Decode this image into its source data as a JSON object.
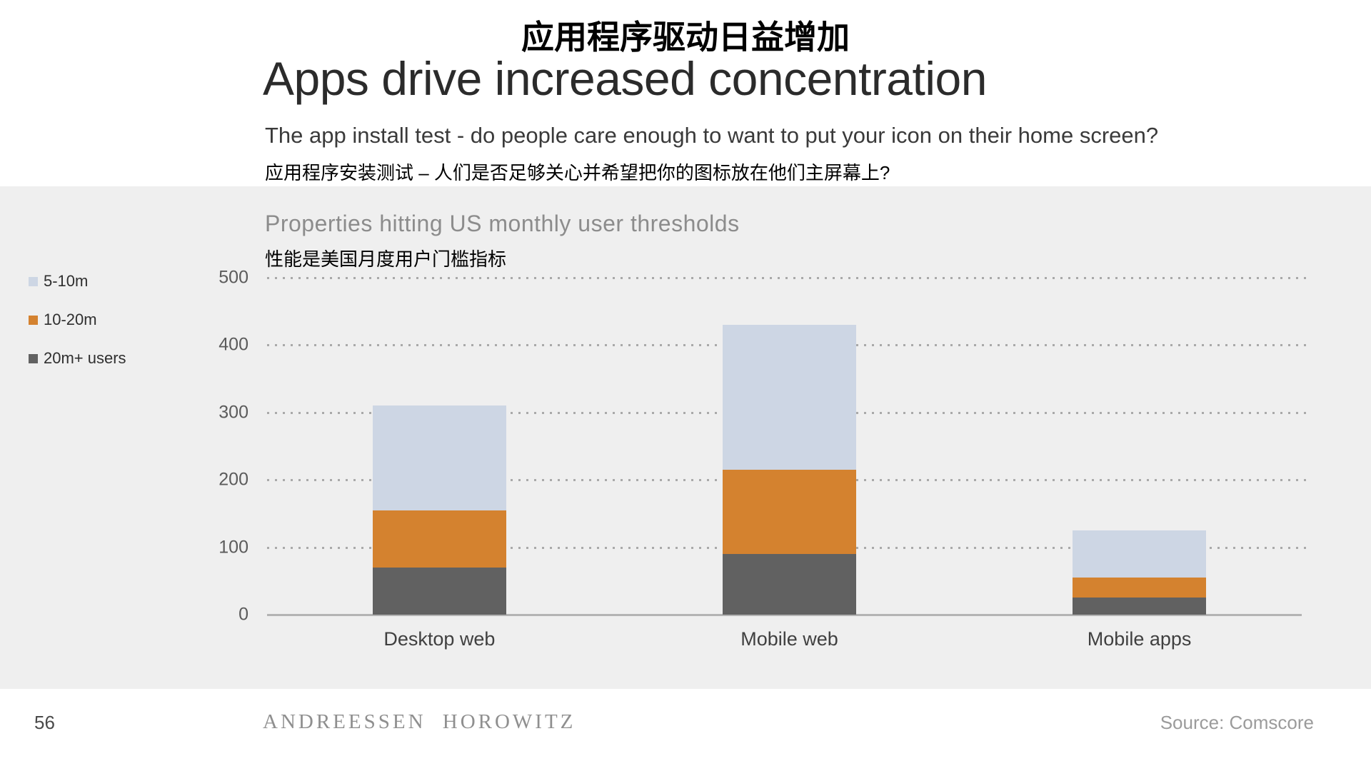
{
  "slide": {
    "title_zh": "应用程序驱动日益增加",
    "title_en": "Apps drive increased concentration",
    "subtitle_en": "The app install test - do people care enough to want to put your icon on their home screen?",
    "subtitle_zh": "应用程序安装测试 – 人们是否足够关心并希望把你的图标放在他们主屏幕上?"
  },
  "chart": {
    "title_en": "Properties hitting US monthly user thresholds",
    "title_zh": "性能是美国月度用户门槛指标"
  },
  "chart_data": {
    "type": "bar",
    "stacked": true,
    "title": "Properties hitting US monthly user thresholds",
    "categories": [
      "Desktop web",
      "Mobile web",
      "Mobile apps"
    ],
    "series": [
      {
        "name": "20m+ users",
        "color": "#616161",
        "values": [
          70,
          90,
          25
        ]
      },
      {
        "name": "10-20m",
        "color": "#d4822f",
        "values": [
          85,
          125,
          30
        ]
      },
      {
        "name": "5-10m",
        "color": "#cdd6e4",
        "values": [
          155,
          215,
          70
        ]
      }
    ],
    "legend_order": [
      "5-10m",
      "10-20m",
      "20m+ users"
    ],
    "legend_position": "left",
    "ylim": [
      0,
      500
    ],
    "yticks": [
      0,
      100,
      200,
      300,
      400,
      500
    ],
    "grid": "horizontal-dotted"
  },
  "footer": {
    "page_number": "56",
    "brand": "ANDREESSEN HOROWITZ",
    "source": "Source: Comscore"
  }
}
